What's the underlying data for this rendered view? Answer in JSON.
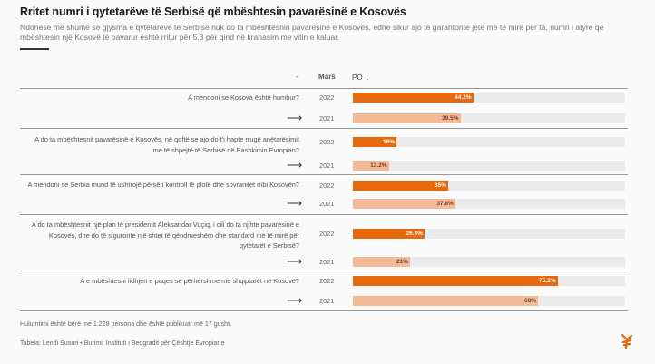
{
  "header": {
    "title": "Rritet numri i qytetarëve të Serbisë që mbështesin pavarësinë e Kosovës",
    "subtitle": "Ndonëse më shumë se gjysma e qytetarëve të Serbisë nuk do ta mbështesnin pavarësinë e Kosovës, edhe sikur ajo të garantonte jetë më të mirë për ta, numri i atyre që mbështesin një Kosovë të pavarur është rritur për 5.3 për qind në krahasim me vitin e kaluar."
  },
  "table": {
    "columns": [
      "-",
      "Mars",
      "PO"
    ],
    "sort_icon": "arrow-down-icon",
    "sort_glyph": "↓",
    "row_arrow_glyph": "⟶"
  },
  "chart_data": {
    "type": "bar",
    "title": "Rritet numri i qytetarëve të Serbisë që mbështesin pavarësinë e Kosovës",
    "xlabel": "",
    "ylabel": "PO",
    "unit": "%",
    "xlim": [
      0,
      100
    ],
    "categories": [
      "A mendoni se Kosova është humbur?",
      "A do ta mbështesnit pavarësinë e Kosovës, në qoftë se ajo do t'i hapte rrugë anëtarësimit më të shpejtë të Serbisë në Bashkimin Evropian?",
      "A mendoni se Serbia mund të ushtrojë përsëri kontroll të plotë dhe sovranitet mbi Kosovën?",
      "A do ta mbështesnit një plan të presidentit Aleksandar Vuçiq, i cili do ta njihte pavarësinë e Kosovës, dhe do të siguronte një shtet të qëndrueshëm dhe standard më të mirë për qytetarët e Serbisë?",
      "A e mbështesni lidhjen e paqes së përhershme me shqiptarët në Kosovë?"
    ],
    "series": [
      {
        "name": "2022",
        "color": "#e8690b",
        "values": [
          44.2,
          16,
          35,
          26.3,
          75.2
        ],
        "labels": [
          "44.2%",
          "16%",
          "35%",
          "26.3%",
          "75.2%"
        ]
      },
      {
        "name": "2021",
        "color": "#f4b997",
        "values": [
          39.5,
          13.2,
          37.6,
          21,
          68
        ],
        "labels": [
          "39.5%",
          "13.2%",
          "37.6%",
          "21%",
          "68%"
        ]
      }
    ],
    "legend": "none",
    "grid": false
  },
  "footer": {
    "note": "Hulumtimi është bërë me 1.228 persona dhe është publikuar më 17 gusht.",
    "credit": "Tabela: Lendi Susuri • Burimi: Instituti i Beogradit për Çështje Evropiane"
  },
  "logo": {
    "icon": "rfe-logo-icon",
    "color": "#e8690b"
  }
}
